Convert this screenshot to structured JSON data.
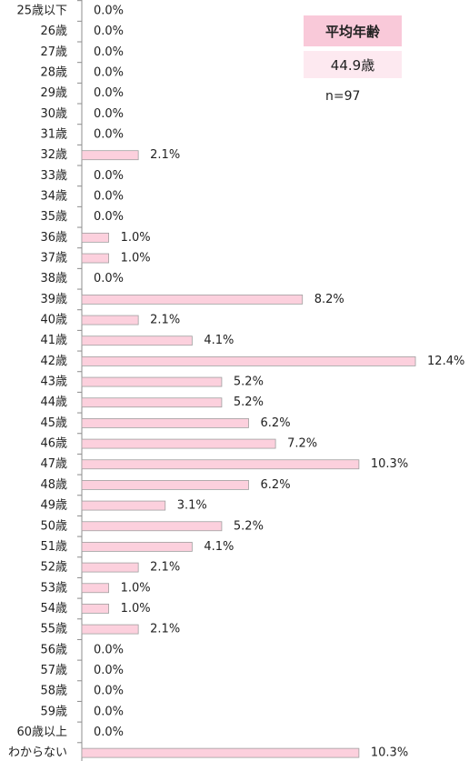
{
  "chart_data": {
    "type": "bar",
    "orientation": "horizontal",
    "categories": [
      "25歳以下",
      "26歳",
      "27歳",
      "28歳",
      "29歳",
      "30歳",
      "31歳",
      "32歳",
      "33歳",
      "34歳",
      "35歳",
      "36歳",
      "37歳",
      "38歳",
      "39歳",
      "40歳",
      "41歳",
      "42歳",
      "43歳",
      "44歳",
      "45歳",
      "46歳",
      "47歳",
      "48歳",
      "49歳",
      "50歳",
      "51歳",
      "52歳",
      "53歳",
      "54歳",
      "55歳",
      "56歳",
      "57歳",
      "58歳",
      "59歳",
      "60歳以上",
      "わからない"
    ],
    "values": [
      0.0,
      0.0,
      0.0,
      0.0,
      0.0,
      0.0,
      0.0,
      2.1,
      0.0,
      0.0,
      0.0,
      1.0,
      1.0,
      0.0,
      8.2,
      2.1,
      4.1,
      12.4,
      5.2,
      5.2,
      6.2,
      7.2,
      10.3,
      6.2,
      3.1,
      5.2,
      4.1,
      2.1,
      1.0,
      1.0,
      2.1,
      0.0,
      0.0,
      0.0,
      0.0,
      0.0,
      10.3
    ],
    "value_labels": [
      "0.0%",
      "0.0%",
      "0.0%",
      "0.0%",
      "0.0%",
      "0.0%",
      "0.0%",
      "2.1%",
      "0.0%",
      "0.0%",
      "0.0%",
      "1.0%",
      "1.0%",
      "0.0%",
      "8.2%",
      "2.1%",
      "4.1%",
      "12.4%",
      "5.2%",
      "5.2%",
      "6.2%",
      "7.2%",
      "10.3%",
      "6.2%",
      "3.1%",
      "5.2%",
      "4.1%",
      "2.1%",
      "1.0%",
      "1.0%",
      "2.1%",
      "0.0%",
      "0.0%",
      "0.0%",
      "0.0%",
      "0.0%",
      "10.3%"
    ],
    "unit": "%",
    "title": "",
    "xlabel": "",
    "ylabel": "",
    "grid": false,
    "bar_color": "#fcd0dd",
    "bar_border_color": "#a0a0a0"
  },
  "summary": {
    "title": "平均年齢",
    "value": "44.9歳",
    "sample": "n=97"
  },
  "colors": {
    "summary_title_bg": "#f9c9d9",
    "summary_value_bg": "#fde9f0"
  }
}
